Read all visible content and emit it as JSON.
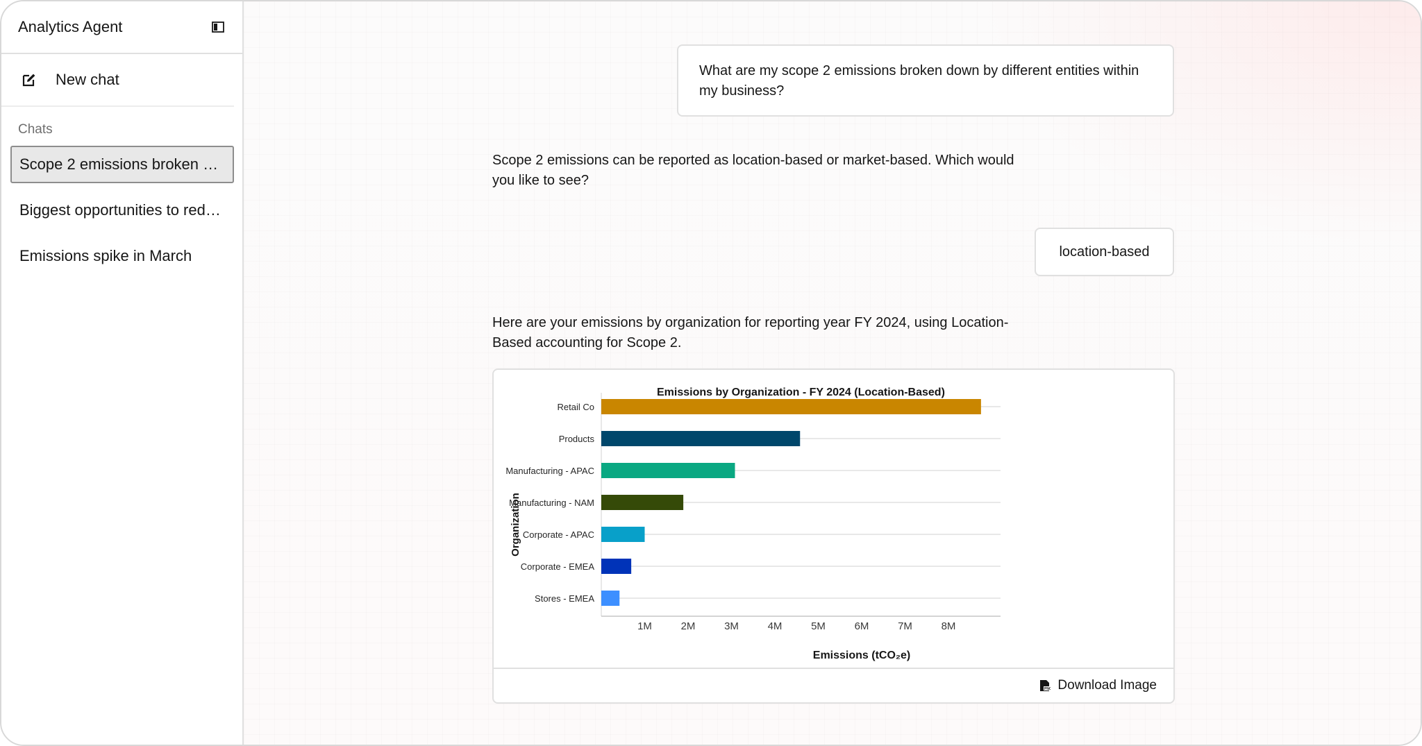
{
  "sidebar": {
    "title": "Analytics Agent",
    "new_chat_label": "New chat",
    "chats_label": "Chats",
    "chats": [
      {
        "label": "Scope 2 emissions broken do..."
      },
      {
        "label": "Biggest opportunities to redu..."
      },
      {
        "label": "Emissions spike in March"
      }
    ]
  },
  "conversation": {
    "user_1": "What are my scope 2 emissions broken down by different entities within my business?",
    "agent_1": "Scope 2 emissions can be reported as location-based or market-based. Which would you like to see?",
    "user_2": "location-based",
    "agent_2": "Here are your emissions by organization for reporting year FY 2024, using Location-Based accounting for Scope 2.",
    "download_label": "Download Image"
  },
  "chart_data": {
    "type": "bar",
    "orientation": "horizontal",
    "title": "Emissions by Organization - FY 2024 (Location-Based)",
    "xlabel": "Emissions (tCO₂e)",
    "ylabel": "Organization",
    "categories": [
      "Retail Co",
      "Products",
      "Manufacturing - APAC",
      "Manufacturing - NAM",
      "Corporate - APAC",
      "Corporate - EMEA",
      "Stores - EMEA"
    ],
    "values": [
      8750000,
      4580000,
      3080000,
      1890000,
      1000000,
      690000,
      420000
    ],
    "colors": [
      "#c98600",
      "#00476b",
      "#0aa882",
      "#354a08",
      "#08a0c9",
      "#0033b8",
      "#3d8fff"
    ],
    "xlim": [
      0,
      9200000
    ],
    "xticks": [
      1000000,
      2000000,
      3000000,
      4000000,
      5000000,
      6000000,
      7000000,
      8000000
    ],
    "xtick_labels": [
      "1M",
      "2M",
      "3M",
      "4M",
      "5M",
      "6M",
      "7M",
      "8M"
    ],
    "grid": true,
    "legend": "none"
  }
}
